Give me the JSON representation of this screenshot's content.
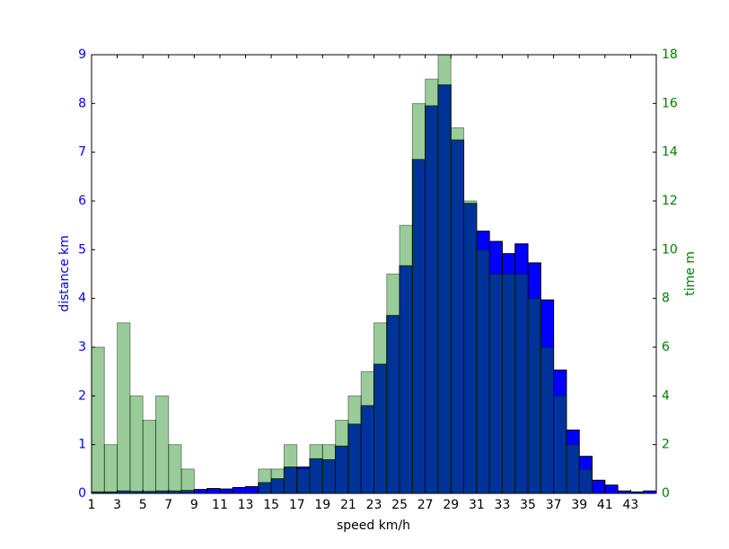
{
  "chart_data": {
    "type": "histogram",
    "bins": [
      1,
      2,
      3,
      4,
      5,
      6,
      7,
      8,
      9,
      10,
      11,
      12,
      13,
      14,
      15,
      16,
      17,
      18,
      19,
      20,
      21,
      22,
      23,
      24,
      25,
      26,
      27,
      28,
      29,
      30,
      31,
      32,
      33,
      34,
      35,
      36,
      37,
      38,
      39,
      40,
      41,
      42,
      43,
      44,
      45
    ],
    "series": [
      {
        "name": "distance km",
        "color": "#0000ff",
        "axis": "y",
        "values": [
          0.03,
          0.03,
          0.05,
          0.04,
          0.04,
          0.05,
          0.05,
          0.06,
          0.08,
          0.1,
          0.09,
          0.12,
          0.14,
          0.22,
          0.3,
          0.54,
          0.54,
          0.71,
          0.69,
          0.97,
          1.42,
          1.8,
          2.65,
          3.65,
          4.67,
          6.85,
          7.95,
          8.38,
          7.25,
          5.95,
          5.38,
          5.17,
          4.92,
          5.12,
          4.73,
          3.97,
          2.53,
          1.3,
          0.76,
          0.27,
          0.17,
          0.05,
          0.03,
          0.05
        ]
      },
      {
        "name": "time m",
        "color": "#008000",
        "axis": "y2",
        "values": [
          6,
          2,
          7,
          4,
          3,
          4,
          2,
          1,
          0,
          0,
          0,
          0,
          0,
          1,
          1,
          2,
          1,
          2,
          2,
          3,
          4,
          5,
          7,
          9,
          11,
          16,
          17,
          18,
          15,
          12,
          10,
          9,
          9,
          9,
          8,
          6,
          4,
          2,
          1,
          0,
          0,
          0,
          0,
          0
        ]
      }
    ],
    "xlabel": "speed km/h",
    "ylabel": "distance km",
    "y2label": "time m",
    "xlim": [
      1,
      45
    ],
    "xticks": [
      1,
      3,
      5,
      7,
      9,
      11,
      13,
      15,
      17,
      19,
      21,
      23,
      25,
      27,
      29,
      31,
      33,
      35,
      37,
      39,
      41,
      43
    ],
    "ylim": [
      0,
      9
    ],
    "yticks": [
      0,
      1,
      2,
      3,
      4,
      5,
      6,
      7,
      8,
      9
    ],
    "y2lim": [
      0,
      18
    ],
    "y2ticks": [
      0,
      2,
      4,
      6,
      8,
      10,
      12,
      14,
      16,
      18
    ]
  }
}
